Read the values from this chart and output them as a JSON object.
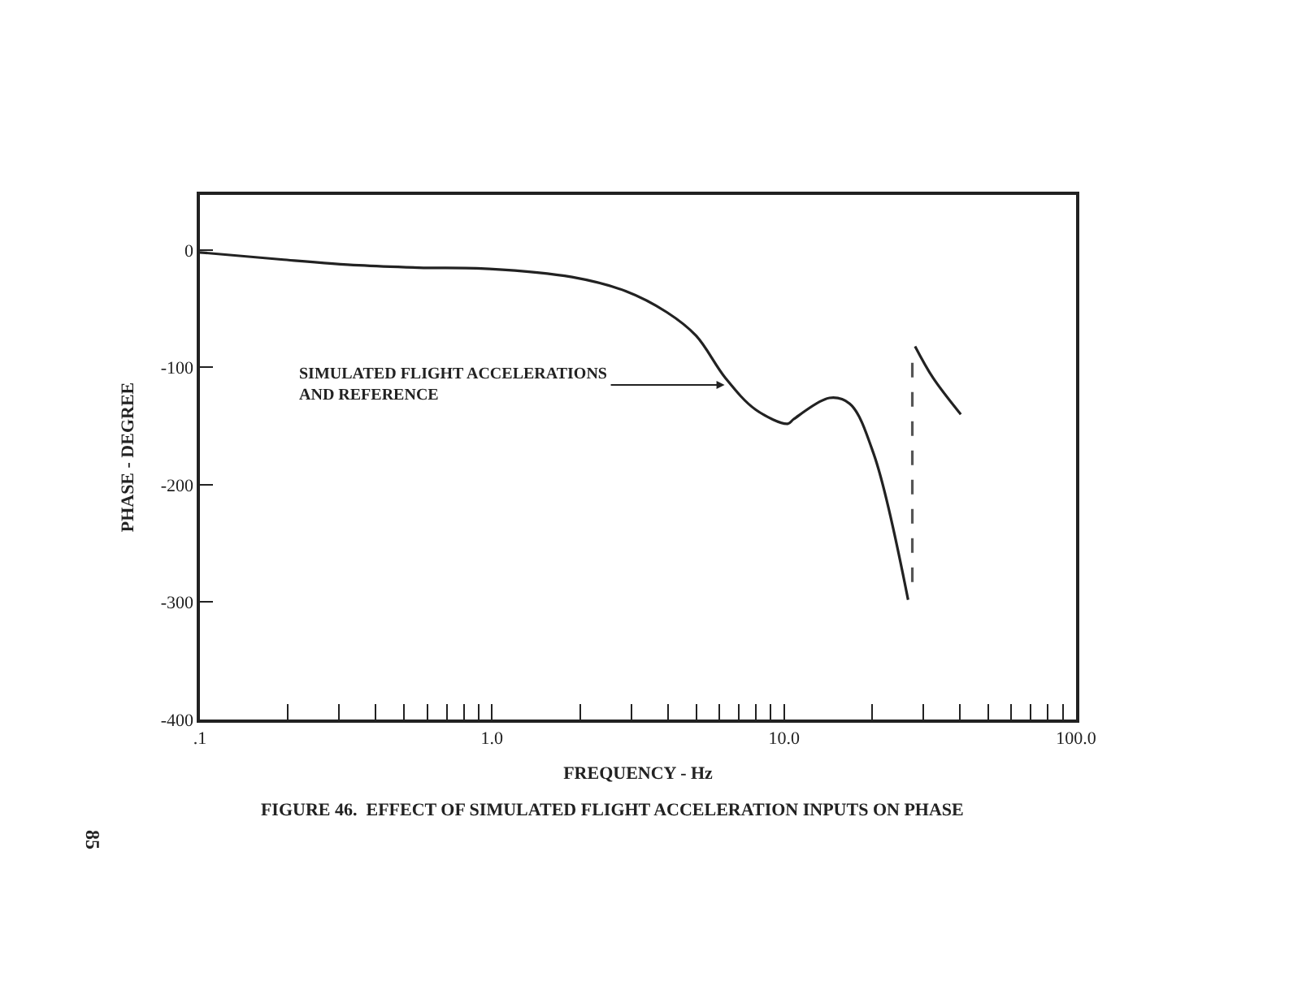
{
  "chart_data": {
    "type": "line",
    "title": "FIGURE 46.  EFFECT OF SIMULATED FLIGHT ACCELERATION INPUTS ON PHASE",
    "xlabel": "FREQUENCY - Hz",
    "ylabel": "PHASE - DEGREE",
    "log": "x",
    "marker": "none",
    "xlim": [
      0.1,
      100
    ],
    "xticks": [
      {
        "value": 0.1,
        "label": ".1"
      },
      {
        "value": 0.2,
        "label": null
      },
      {
        "value": 0.3,
        "label": null
      },
      {
        "value": 0.4,
        "label": null
      },
      {
        "value": 0.5,
        "label": null
      },
      {
        "value": 0.6,
        "label": null
      },
      {
        "value": 0.7,
        "label": null
      },
      {
        "value": 0.8,
        "label": null
      },
      {
        "value": 0.9,
        "label": null
      },
      {
        "value": 1,
        "label": "1.0"
      },
      {
        "value": 2,
        "label": null
      },
      {
        "value": 3,
        "label": null
      },
      {
        "value": 4,
        "label": null
      },
      {
        "value": 5,
        "label": null
      },
      {
        "value": 6,
        "label": null
      },
      {
        "value": 7,
        "label": null
      },
      {
        "value": 8,
        "label": null
      },
      {
        "value": 9,
        "label": null
      },
      {
        "value": 10,
        "label": "10.0"
      },
      {
        "value": 20,
        "label": null
      },
      {
        "value": 30,
        "label": null
      },
      {
        "value": 40,
        "label": null
      },
      {
        "value": 50,
        "label": null
      },
      {
        "value": 60,
        "label": null
      },
      {
        "value": 70,
        "label": null
      },
      {
        "value": 80,
        "label": null
      },
      {
        "value": 90,
        "label": null
      },
      {
        "value": 100,
        "label": "100.0"
      }
    ],
    "ylim": [
      -400,
      47
    ],
    "yticks": [
      0,
      -100,
      -200,
      -300,
      -400
    ],
    "series": [
      {
        "color": "#222222",
        "line_style": "solid",
        "x": [
          0.1,
          0.19,
          0.35,
          0.56,
          0.98,
          1.88,
          2.87,
          3.97,
          5.0,
          6.3,
          8.0,
          10.3,
          10.8,
          14.3,
          16.8,
          20.3,
          26.6,
          27.5,
          28.1,
          32.4,
          40.3
        ],
        "values": [
          -2,
          -8,
          -13,
          -15,
          -16,
          -23,
          -35,
          -53,
          -73,
          -109,
          -136,
          -148,
          -144,
          -126,
          -131,
          -174,
          -298,
          null,
          -82,
          -109,
          -140
        ]
      },
      {
        "color": "#555555",
        "line_style": "dashed",
        "x": [
          27.5,
          27.5
        ],
        "values": [
          -96,
          -285
        ]
      }
    ],
    "annotations": [
      {
        "text": "SIMULATED FLIGHT ACCELERATIONS\nAND REFERENCE",
        "x": 6.26,
        "y": -115
      },
      "85"
    ]
  }
}
